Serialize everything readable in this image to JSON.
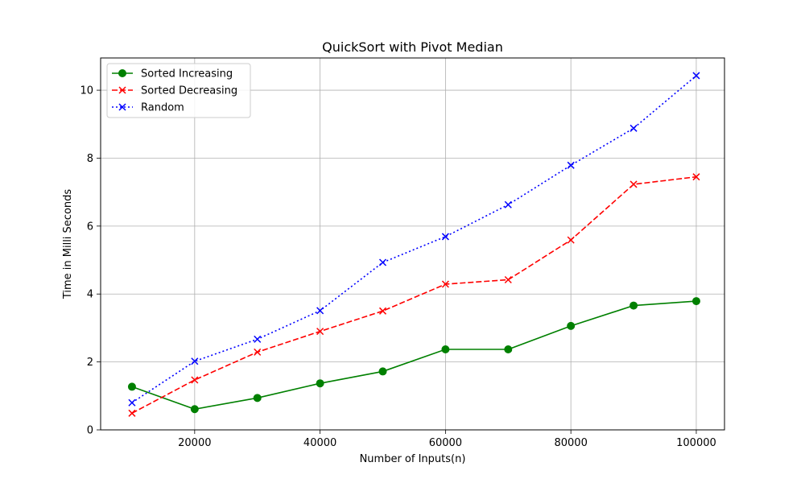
{
  "chart_data": {
    "type": "line",
    "title": "QuickSort with Pivot Median",
    "xlabel": "Number of Inputs(n)",
    "ylabel": "Time in Milli Seconds",
    "xlim": [
      5000,
      104500
    ],
    "ylim": [
      0,
      10.95
    ],
    "x_ticks": [
      20000,
      40000,
      60000,
      80000,
      100000
    ],
    "y_ticks": [
      0,
      2,
      4,
      6,
      8,
      10
    ],
    "grid": true,
    "legend_position": "top-left",
    "x": [
      10000,
      20000,
      30000,
      40000,
      50000,
      60000,
      70000,
      80000,
      90000,
      100000
    ],
    "series": [
      {
        "name": "Sorted Increasing",
        "color": "#008000",
        "line_style": "solid",
        "marker": "circle",
        "values": [
          1.27,
          0.61,
          0.94,
          1.37,
          1.72,
          2.37,
          2.37,
          3.06,
          3.66,
          3.79
        ]
      },
      {
        "name": "Sorted Decreasing",
        "color": "#ff0000",
        "line_style": "dashed",
        "marker": "x",
        "values": [
          0.49,
          1.47,
          2.29,
          2.9,
          3.5,
          4.29,
          4.42,
          5.59,
          7.23,
          7.45
        ]
      },
      {
        "name": "Random",
        "color": "#0000ff",
        "line_style": "dotted",
        "marker": "x",
        "values": [
          0.8,
          2.02,
          2.67,
          3.51,
          4.93,
          5.69,
          6.63,
          7.79,
          8.88,
          10.43
        ]
      }
    ]
  }
}
